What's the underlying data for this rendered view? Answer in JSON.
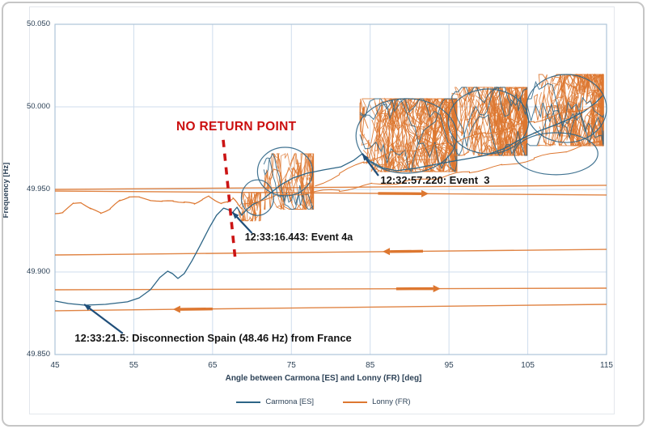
{
  "colors": {
    "carmona": "#2d6586",
    "lonny": "#dd7730",
    "annotation_arrow": "#1f4e79",
    "no_return_red": "#cb1414",
    "grid": "#cfdded",
    "plot_border": "#aec4d8",
    "axis_text": "#2d4257"
  },
  "chart_data": {
    "type": "line",
    "title": "",
    "xlabel": "Angle between Carmona [ES] and Lonny (FR) [deg]",
    "ylabel": "Frequency [Hz]",
    "xlim": [
      45,
      115
    ],
    "ylim": [
      49.85,
      50.05
    ],
    "x_ticks": [
      "45",
      "55",
      "65",
      "75",
      "85",
      "95",
      "105",
      "115"
    ],
    "y_ticks": [
      "50.050",
      "50.000",
      "49.950",
      "49.900",
      "49.850"
    ],
    "grid": true,
    "legend_position": "bottom",
    "legend": [
      {
        "label": "Carmona [ES]",
        "color_key": "carmona"
      },
      {
        "label": "Lonny (FR)",
        "color_key": "lonny"
      }
    ],
    "series": [
      {
        "name": "Carmona [ES] trajectory",
        "color_key": "carmona",
        "width": 1.3,
        "points": [
          [
            45.0,
            49.8824
          ],
          [
            46.7,
            49.8809
          ],
          [
            48.8,
            49.8799
          ],
          [
            51.4,
            49.8804
          ],
          [
            54.2,
            49.8819
          ],
          [
            55.7,
            49.8843
          ],
          [
            57.1,
            49.8892
          ],
          [
            58.3,
            49.8966
          ],
          [
            59.3,
            49.9005
          ],
          [
            59.9,
            49.899
          ],
          [
            60.6,
            49.8961
          ],
          [
            61.4,
            49.899
          ],
          [
            62.4,
            49.9069
          ],
          [
            63.5,
            49.9167
          ],
          [
            64.6,
            49.927
          ],
          [
            65.5,
            49.9343
          ],
          [
            66.4,
            49.9387
          ],
          [
            67.0,
            49.9377
          ],
          [
            67.5,
            49.9358
          ],
          [
            68.1,
            49.9392
          ],
          [
            68.7,
            49.9343
          ],
          [
            69.4,
            49.9382
          ],
          [
            70.2,
            49.9412
          ],
          [
            71.1,
            49.9431
          ],
          [
            72.4,
            49.948
          ],
          [
            73.7,
            49.9529
          ],
          [
            75.2,
            49.9569
          ],
          [
            77.0,
            49.9598
          ],
          [
            79.1,
            49.9618
          ],
          [
            81.3,
            49.9637
          ],
          [
            82.9,
            49.9676
          ],
          [
            84.0,
            49.9716
          ],
          [
            85.0,
            49.9672
          ],
          [
            86.5,
            49.9632
          ],
          [
            88.3,
            49.9613
          ],
          [
            90.6,
            49.9627
          ],
          [
            92.8,
            49.9647
          ],
          [
            95.1,
            49.9667
          ],
          [
            97.3,
            49.9686
          ],
          [
            99.6,
            49.9706
          ],
          [
            101.9,
            49.9745
          ],
          [
            104.1,
            49.9804
          ],
          [
            106.4,
            49.9853
          ],
          [
            108.6,
            49.9892
          ],
          [
            110.5,
            49.9931
          ],
          [
            112.1,
            49.997
          ],
          [
            113.6,
            50.0024
          ],
          [
            114.5,
            50.0068
          ]
        ]
      },
      {
        "name": "Lonny (FR) pre-event",
        "color_key": "lonny",
        "width": 1.2,
        "wavy": 0.8,
        "points": [
          [
            45.0,
            49.9353
          ],
          [
            46.0,
            49.9363
          ],
          [
            47.3,
            49.9412
          ],
          [
            48.3,
            49.9422
          ],
          [
            49.5,
            49.9382
          ],
          [
            50.8,
            49.9358
          ],
          [
            52.0,
            49.9382
          ],
          [
            53.2,
            49.9431
          ],
          [
            54.4,
            49.9456
          ],
          [
            55.7,
            49.9451
          ],
          [
            57.1,
            49.9436
          ],
          [
            58.6,
            49.9426
          ],
          [
            60.0,
            49.9431
          ],
          [
            61.4,
            49.9422
          ],
          [
            62.7,
            49.9412
          ],
          [
            63.7,
            49.9441
          ],
          [
            64.5,
            49.9456
          ],
          [
            65.3,
            49.9436
          ],
          [
            66.1,
            49.9412
          ],
          [
            66.9,
            49.9426
          ],
          [
            67.6,
            49.9446
          ],
          [
            68.2,
            49.9412
          ],
          [
            68.8,
            49.9382
          ]
        ]
      },
      {
        "name": "Lonny (FR) band upper strand",
        "color_key": "lonny",
        "width": 1.0,
        "wavy": 1.8,
        "points": [
          [
            78.0,
            49.952
          ],
          [
            81.1,
            49.9593
          ],
          [
            84.2,
            49.9667
          ],
          [
            87.3,
            49.9716
          ],
          [
            90.4,
            49.974
          ],
          [
            93.4,
            49.9765
          ],
          [
            96.5,
            49.9804
          ],
          [
            99.6,
            49.9838
          ],
          [
            102.7,
            49.9873
          ],
          [
            105.8,
            49.9912
          ],
          [
            108.8,
            49.9951
          ],
          [
            111.9,
            49.9985
          ],
          [
            114.5,
            50.002
          ]
        ]
      },
      {
        "name": "Lonny (FR) band lower strand",
        "color_key": "lonny",
        "width": 1.0,
        "wavy": 1.8,
        "points": [
          [
            68.8,
            49.9412
          ],
          [
            72.9,
            49.9456
          ],
          [
            77.0,
            49.948
          ],
          [
            81.1,
            49.9495
          ],
          [
            85.2,
            49.9529
          ],
          [
            89.3,
            49.9544
          ],
          [
            93.4,
            49.9569
          ],
          [
            97.6,
            49.9608
          ],
          [
            101.7,
            49.9642
          ],
          [
            105.8,
            49.9686
          ],
          [
            109.9,
            49.9735
          ],
          [
            114.5,
            49.979
          ]
        ]
      }
    ],
    "sweep_lines": [
      {
        "name": "sweep 49.950 upper",
        "points": [
          [
            45,
            49.95
          ],
          [
            115,
            49.9525
          ]
        ],
        "arrow": null
      },
      {
        "name": "sweep 49.949",
        "points": [
          [
            45,
            49.949
          ],
          [
            115,
            49.9466
          ]
        ],
        "arrow": {
          "dir": "right",
          "tail": 86.0,
          "tip": 91.5
        }
      },
      {
        "name": "sweep 49.911",
        "points": [
          [
            45,
            49.9103
          ],
          [
            115,
            49.9137
          ]
        ],
        "arrow": {
          "dir": "left",
          "tail": 91.7,
          "tip": 87.5
        }
      },
      {
        "name": "sweep 49.889",
        "points": [
          [
            45,
            49.8892
          ],
          [
            115,
            49.8902
          ]
        ],
        "arrow": {
          "dir": "right",
          "tail": 88.3,
          "tip": 93.0
        }
      },
      {
        "name": "sweep 49.878",
        "points": [
          [
            45,
            49.8765
          ],
          [
            115,
            49.8804
          ]
        ],
        "arrow": {
          "dir": "left",
          "tail": 65.0,
          "tip": 60.9
        }
      }
    ],
    "scribble_clusters": [
      {
        "a0": 67.8,
        "a1": 71.1,
        "f0": 49.931,
        "f1": 49.948,
        "n": 7,
        "blue_n": 0
      },
      {
        "a0": 71.5,
        "a1": 77.8,
        "f0": 49.938,
        "f1": 49.9716,
        "n": 14,
        "blue_n": 2
      },
      {
        "a0": 83.7,
        "a1": 96.0,
        "f0": 49.9608,
        "f1": 50.0049,
        "n": 46,
        "blue_n": 3
      },
      {
        "a0": 95.3,
        "a1": 104.9,
        "f0": 49.9706,
        "f1": 50.0118,
        "n": 34,
        "blue_n": 3
      },
      {
        "a0": 104.9,
        "a1": 114.6,
        "f0": 49.9765,
        "f1": 50.0196,
        "n": 34,
        "blue_n": 3
      }
    ],
    "blue_loops": [
      {
        "cx": 70.7,
        "cy": 49.945,
        "rx": 2.05,
        "ry": 0.0108
      },
      {
        "cx": 74.2,
        "cy": 49.9608,
        "rx": 3.5,
        "ry": 0.0147
      },
      {
        "cx": 89.6,
        "cy": 49.9824,
        "rx": 6.4,
        "ry": 0.0226
      },
      {
        "cx": 100.0,
        "cy": 49.9912,
        "rx": 5.1,
        "ry": 0.0196
      },
      {
        "cx": 109.9,
        "cy": 49.999,
        "rx": 5.1,
        "ry": 0.0206
      },
      {
        "cx": 108.6,
        "cy": 49.9716,
        "rx": 5.3,
        "ry": 0.0127
      }
    ],
    "no_return_line": {
      "from": [
        66.35,
        49.98
      ],
      "to": [
        67.89,
        49.907
      ],
      "style": "dashed"
    },
    "annotations": [
      {
        "id": "no-return-label",
        "text": "NO RETURN POINT",
        "pos": [
          60.4,
          49.9922
        ],
        "size": 15.5,
        "red": true,
        "arrow": null
      },
      {
        "id": "event3-label",
        "text": "12:32:57.220: Event  3",
        "pos": [
          86.3,
          49.9593
        ],
        "size": 13,
        "arrow": {
          "from": [
            86.05,
            49.9583
          ],
          "to": [
            84.0,
            49.9716
          ]
        }
      },
      {
        "id": "event4a-label",
        "text": "12:33:16.443: Event 4a",
        "pos": [
          69.1,
          49.9245
        ],
        "size": 12.5,
        "arrow": {
          "from": [
            70.0,
            49.9235
          ],
          "to": [
            67.5,
            49.9363
          ]
        }
      },
      {
        "id": "disconnection-label",
        "text": "12:33:21.5: Disconnection Spain (48.46 Hz) from France",
        "pos": [
          47.5,
          49.8637
        ],
        "size": 13,
        "arrow": {
          "from": [
            53.6,
            49.8628
          ],
          "to": [
            48.7,
            49.8804
          ]
        }
      }
    ]
  }
}
